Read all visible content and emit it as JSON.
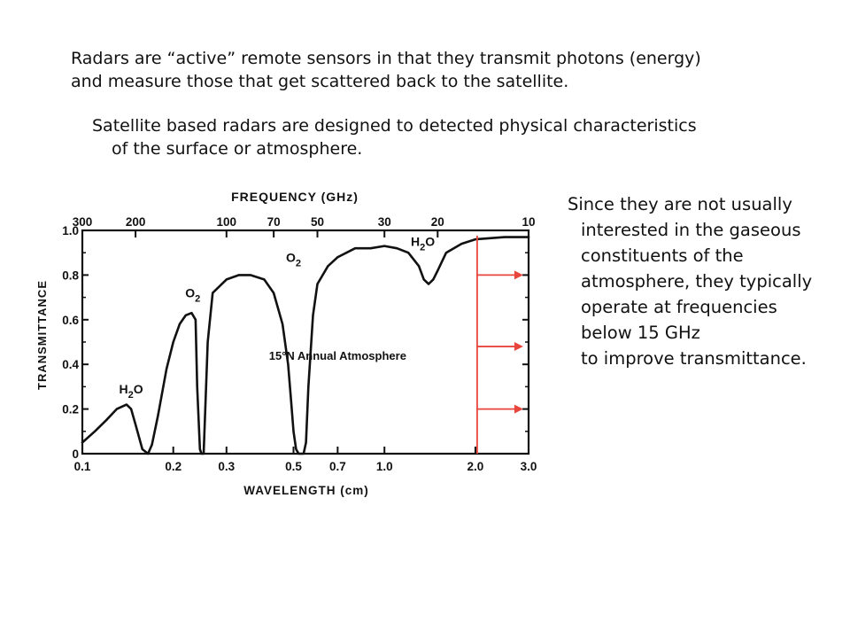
{
  "text": {
    "para1": [
      "Radars are “active” remote sensors in that they transmit photons (energy)",
      "and measure those that get scattered back to the satellite."
    ],
    "para2": [
      "Satellite based radars are designed to detected physical characteristics",
      "of the surface or atmosphere."
    ],
    "side": [
      "Since they are not usually",
      "interested in the gaseous",
      "constituents of the",
      "atmosphere, they typically",
      "operate at frequencies",
      "below 15 GHz",
      "to improve transmittance."
    ]
  },
  "colors": {
    "marker": "#e8453c",
    "curve": "#111111"
  },
  "chart_data": {
    "type": "line",
    "title": "FREQUENCY (GHz)",
    "xlabel": "WAVELENGTH (cm)",
    "ylabel": "TRANSMITTANCE",
    "x_scale": "log",
    "xlim": [
      0.1,
      3.0
    ],
    "ylim": [
      0,
      1.0
    ],
    "x_ticks": [
      "0.1",
      "0.2",
      "0.3",
      "0.5",
      "0.7",
      "1.0",
      "2.0",
      "3.0"
    ],
    "y_ticks": [
      "0",
      "0.2",
      "0.4",
      "0.6",
      "0.8",
      "1.0"
    ],
    "top_ticks": [
      {
        "label": "300",
        "wavelength": 0.1
      },
      {
        "label": "200",
        "wavelength": 0.15
      },
      {
        "label": "100",
        "wavelength": 0.3
      },
      {
        "label": "70",
        "wavelength": 0.43
      },
      {
        "label": "50",
        "wavelength": 0.6
      },
      {
        "label": "30",
        "wavelength": 1.0
      },
      {
        "label": "20",
        "wavelength": 1.5
      },
      {
        "label": "10",
        "wavelength": 3.0
      }
    ],
    "series": [
      {
        "x": [
          0.1,
          0.11,
          0.12,
          0.13,
          0.14,
          0.145,
          0.15,
          0.158,
          0.165,
          0.17,
          0.178,
          0.19,
          0.2,
          0.21,
          0.22,
          0.23,
          0.237,
          0.24,
          0.245,
          0.248,
          0.252,
          0.26,
          0.27,
          0.3,
          0.33,
          0.36,
          0.4,
          0.43,
          0.46,
          0.48,
          0.49,
          0.5,
          0.51,
          0.52,
          0.53,
          0.54,
          0.55,
          0.56,
          0.58,
          0.6,
          0.65,
          0.7,
          0.8,
          0.9,
          1.0,
          1.1,
          1.2,
          1.3,
          1.35,
          1.4,
          1.45,
          1.5,
          1.6,
          1.8,
          2.0,
          2.5,
          3.0
        ],
        "y": [
          0.05,
          0.1,
          0.15,
          0.2,
          0.22,
          0.2,
          0.13,
          0.02,
          0.0,
          0.04,
          0.17,
          0.38,
          0.5,
          0.58,
          0.62,
          0.63,
          0.6,
          0.3,
          0.02,
          0.0,
          0.0,
          0.5,
          0.72,
          0.78,
          0.8,
          0.8,
          0.78,
          0.72,
          0.58,
          0.4,
          0.25,
          0.1,
          0.02,
          0.0,
          0.0,
          0.0,
          0.05,
          0.3,
          0.62,
          0.76,
          0.84,
          0.88,
          0.92,
          0.92,
          0.93,
          0.92,
          0.9,
          0.84,
          0.78,
          0.76,
          0.78,
          0.82,
          0.9,
          0.94,
          0.96,
          0.97,
          0.97
        ]
      }
    ],
    "annotations": [
      {
        "text": "H",
        "sub": "2",
        "tail": "O",
        "x": 0.145,
        "y": 0.27
      },
      {
        "text": "O",
        "sub": "2",
        "tail": "",
        "x": 0.232,
        "y": 0.7
      },
      {
        "text": "O",
        "sub": "2",
        "tail": "",
        "x": 0.5,
        "y": 0.86
      },
      {
        "text": "H",
        "sub": "2",
        "tail": "O",
        "x": 1.34,
        "y": 0.93
      },
      {
        "text": "15°N Annual Atmosphere",
        "sub": "",
        "tail": "",
        "x": 0.7,
        "y": 0.42
      }
    ],
    "marker_line_wavelength": 2.0,
    "arrows_y": [
      0.8,
      0.48,
      0.2
    ]
  }
}
